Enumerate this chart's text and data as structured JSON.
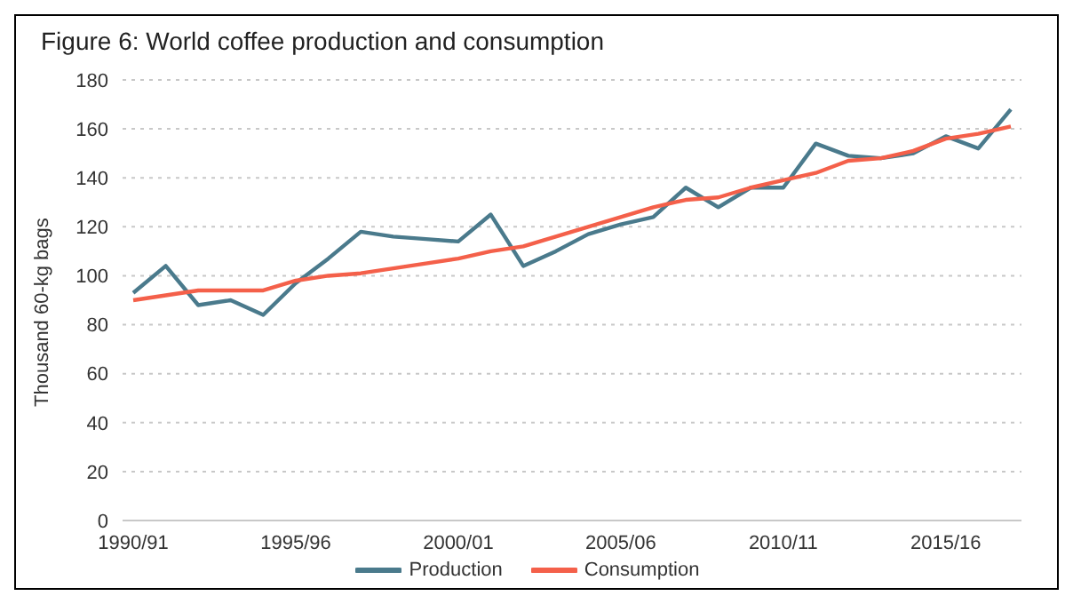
{
  "chart_data": {
    "type": "line",
    "title": "Figure 6: World coffee production  and consumption",
    "ylabel": "Thousand 60-kg bags",
    "categories": [
      "1990/91",
      null,
      null,
      null,
      null,
      "1995/96",
      null,
      null,
      null,
      null,
      "2000/01",
      null,
      null,
      null,
      null,
      "2005/06",
      null,
      null,
      null,
      null,
      "2010/11",
      null,
      null,
      null,
      null,
      "2015/16",
      null,
      null
    ],
    "series": [
      {
        "name": "Production",
        "color": "#4a7a8c",
        "values": [
          93,
          104,
          88,
          90,
          84,
          97,
          107,
          118,
          116,
          115,
          114,
          125,
          104,
          110,
          117,
          121,
          124,
          136,
          128,
          136,
          136,
          154,
          149,
          148,
          150,
          157,
          152,
          168
        ]
      },
      {
        "name": "Consumption",
        "color": "#f4604a",
        "values": [
          90,
          92,
          94,
          94,
          94,
          98,
          100,
          101,
          103,
          105,
          107,
          110,
          112,
          116,
          120,
          124,
          128,
          131,
          132,
          136,
          139,
          142,
          147,
          148,
          151,
          156,
          158,
          161
        ]
      }
    ],
    "ylim": [
      0,
      180
    ],
    "yticks": [
      0,
      20,
      40,
      60,
      80,
      100,
      120,
      140,
      160,
      180
    ],
    "grid": "y",
    "legend": "bottom",
    "marker": "none",
    "line_style": "solid"
  }
}
